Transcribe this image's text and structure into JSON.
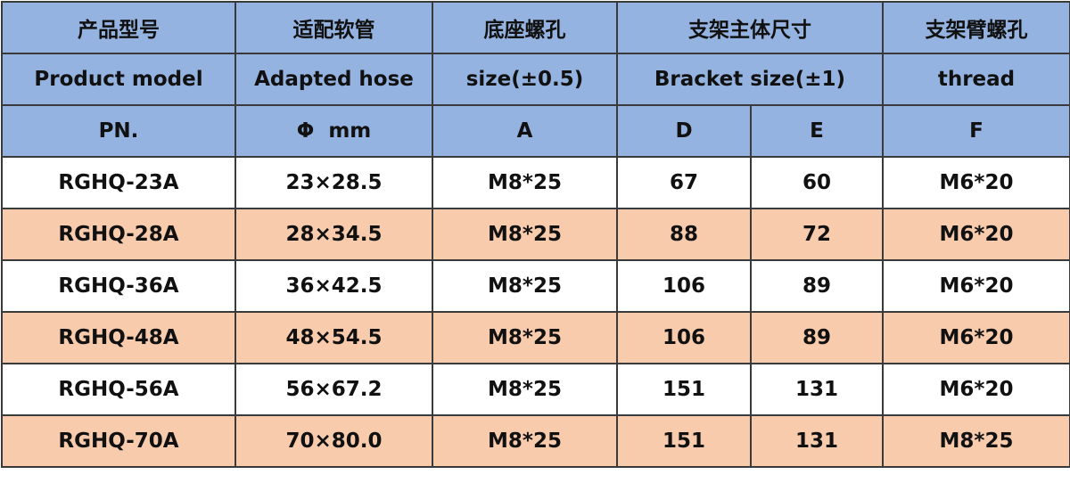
{
  "table": {
    "header": [
      [
        "产品型号",
        "适配软管",
        "底座螺孔",
        "支架主体尺寸",
        "支架臂螺孔"
      ],
      [
        "Product model",
        "Adapted hose",
        "size(±0.5)",
        "Bracket size(±1)",
        "thread"
      ],
      [
        "PN.",
        "Φ  mm",
        "A",
        "D",
        "E",
        "F"
      ]
    ],
    "rows": [
      [
        "RGHQ-23A",
        "23×28.5",
        "M8*25",
        67,
        60,
        "M6*20"
      ],
      [
        "RGHQ-28A",
        "28×34.5",
        "M8*25",
        88,
        72,
        "M6*20"
      ],
      [
        "RGHQ-36A",
        "36×42.5",
        "M8*25",
        106,
        89,
        "M6*20"
      ],
      [
        "RGHQ-48A",
        "48×54.5",
        "M8*25",
        106,
        89,
        "M6*20"
      ],
      [
        "RGHQ-56A",
        "56×67.2",
        "M8*25",
        151,
        131,
        "M6*20"
      ],
      [
        "RGHQ-70A",
        "70×80.0",
        "M8*25",
        151,
        131,
        "M8*25"
      ]
    ]
  }
}
